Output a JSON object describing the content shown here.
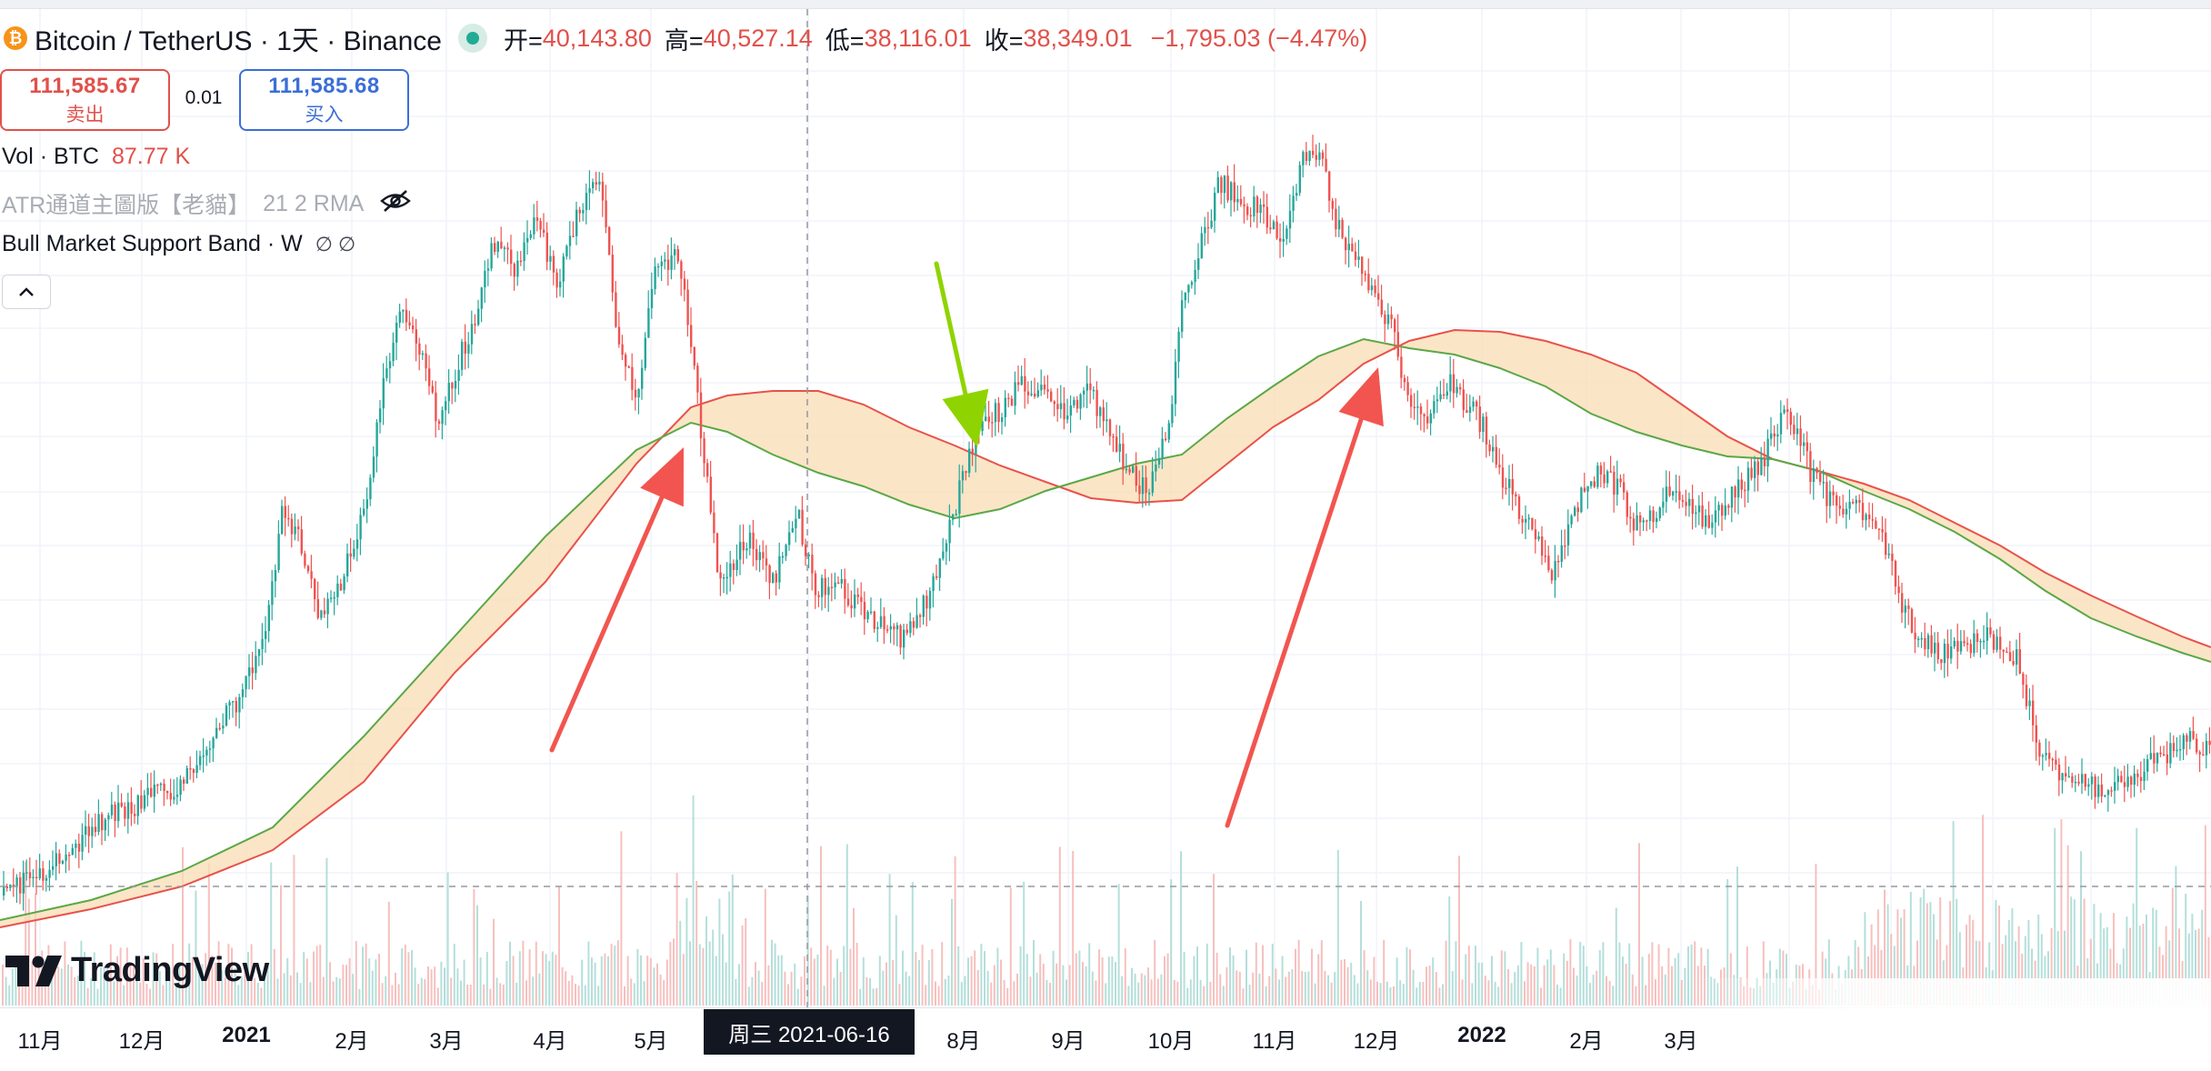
{
  "header": {
    "title": "Bitcoin / TetherUS · 1天 · Binance",
    "coin_icon": "bitcoin-coin-icon",
    "ohlc": [
      {
        "key": "开=",
        "value": "40,143.80"
      },
      {
        "key": "高=",
        "value": "40,527.14"
      },
      {
        "key": "低=",
        "value": "38,116.01"
      },
      {
        "key": "收=",
        "value": "38,349.01"
      }
    ],
    "change": "−1,795.03 (−4.47%)"
  },
  "trade": {
    "sell_price": "111,585.67",
    "sell_label": "卖出",
    "spread": "0.01",
    "buy_price": "111,585.68",
    "buy_label": "买入"
  },
  "indicators": {
    "vol_label": "Vol · BTC",
    "vol_value": "87.77 K",
    "atr_label": "ATR通道主圖版【老貓】",
    "atr_params": "21 2 RMA",
    "bmsb_label": "Bull Market Support Band · W",
    "bmsb_values": "∅ ∅"
  },
  "brand": "TradingView",
  "time_axis": {
    "labels": [
      {
        "text": "11月",
        "year": false
      },
      {
        "text": "12月",
        "year": false
      },
      {
        "text": "2021",
        "year": true
      },
      {
        "text": "2月",
        "year": false
      },
      {
        "text": "3月",
        "year": false
      },
      {
        "text": "4月",
        "year": false
      },
      {
        "text": "5月",
        "year": false
      },
      {
        "text": "8月",
        "year": false
      },
      {
        "text": "9月",
        "year": false
      },
      {
        "text": "10月",
        "year": false
      },
      {
        "text": "11月",
        "year": false
      },
      {
        "text": "12月",
        "year": false
      },
      {
        "text": "2022",
        "year": true
      },
      {
        "text": "2月",
        "year": false
      },
      {
        "text": "3月",
        "year": false
      }
    ],
    "crosshair_date": "周三 2021-06-16"
  },
  "colors": {
    "up": "#26a69a",
    "down": "#ef5350",
    "band_fill": "#f9dcb4",
    "band_red": "#e8524a",
    "band_green": "#5aa845",
    "arrow_red": "#f2554f",
    "arrow_green": "#8fd400"
  }
}
